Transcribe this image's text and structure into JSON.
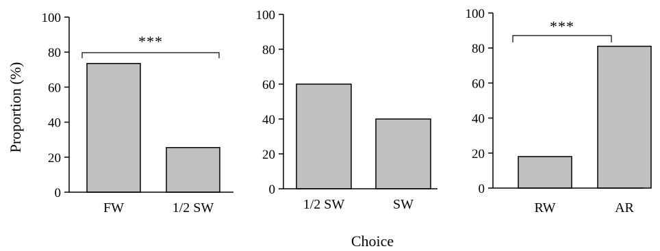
{
  "figure": {
    "ylabel": "Proportion (%)",
    "xlabel": "Choice"
  },
  "chart_data": [
    {
      "type": "bar",
      "categories": [
        "FW",
        "1/2 SW"
      ],
      "values": [
        73.5,
        25.5
      ],
      "ylim": [
        0,
        100
      ],
      "yticks": [
        "0",
        "20",
        "40",
        "60",
        "80",
        "100"
      ],
      "ylabel": "Proportion (%)",
      "significance": "***",
      "bar_color": "#c0c0c0"
    },
    {
      "type": "bar",
      "categories": [
        "1/2 SW",
        "SW"
      ],
      "values": [
        60,
        40
      ],
      "ylim": [
        0,
        100
      ],
      "yticks": [
        "0",
        "20",
        "40",
        "60",
        "80",
        "100"
      ],
      "bar_color": "#c0c0c0"
    },
    {
      "type": "bar",
      "categories": [
        "RW",
        "AR"
      ],
      "values": [
        18,
        81
      ],
      "ylim": [
        0,
        100
      ],
      "yticks": [
        "0",
        "20",
        "40",
        "60",
        "80",
        "100"
      ],
      "significance": "***",
      "bar_color": "#c0c0c0"
    }
  ]
}
